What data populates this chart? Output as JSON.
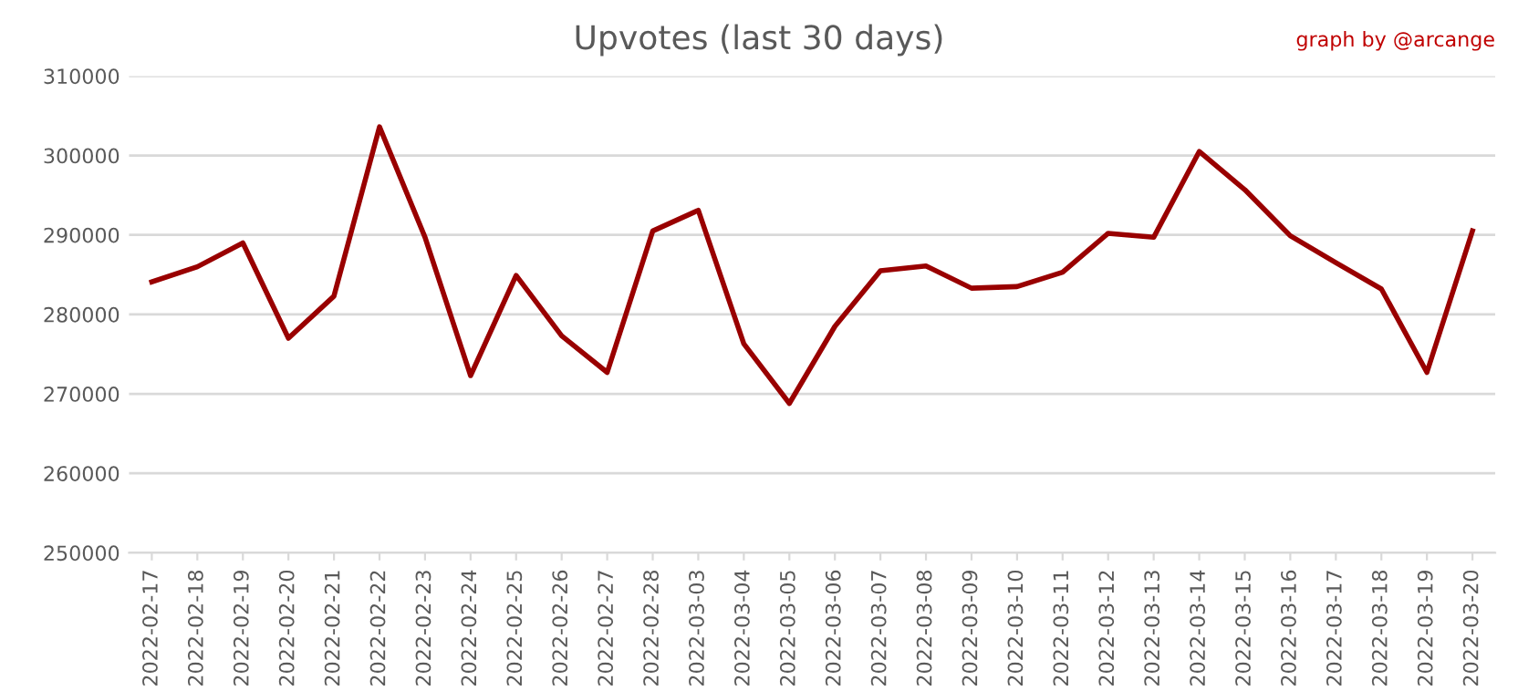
{
  "chart_data": {
    "type": "line",
    "title": "Upvotes (last 30 days)",
    "annotations": [
      "graph by @arcange"
    ],
    "categories": [
      "2022-02-17",
      "2022-02-18",
      "2022-02-19",
      "2022-02-20",
      "2022-02-21",
      "2022-02-22",
      "2022-02-23",
      "2022-02-24",
      "2022-02-25",
      "2022-02-26",
      "2022-02-27",
      "2022-02-28",
      "2022-03-03",
      "2022-03-04",
      "2022-03-05",
      "2022-03-06",
      "2022-03-07",
      "2022-03-08",
      "2022-03-09",
      "2022-03-10",
      "2022-03-11",
      "2022-03-12",
      "2022-03-13",
      "2022-03-14",
      "2022-03-15",
      "2022-03-16",
      "2022-03-17",
      "2022-03-18",
      "2022-03-19",
      "2022-03-20"
    ],
    "series": [
      {
        "color": "#990000",
        "values": [
          284100,
          286000,
          289000,
          277000,
          282300,
          303600,
          289700,
          272300,
          284900,
          277300,
          272700,
          290500,
          293100,
          276300,
          268800,
          278500,
          285500,
          286100,
          283300,
          283500,
          285300,
          290200,
          289700,
          300500,
          295700,
          289900,
          286500,
          283200,
          272700,
          290500
        ]
      }
    ],
    "ylim": [
      250000,
      310000
    ],
    "yticks": [
      250000,
      260000,
      270000,
      280000,
      290000,
      300000,
      310000
    ],
    "grid": "y",
    "legend": false,
    "marker": "none",
    "line_style": "solid"
  }
}
